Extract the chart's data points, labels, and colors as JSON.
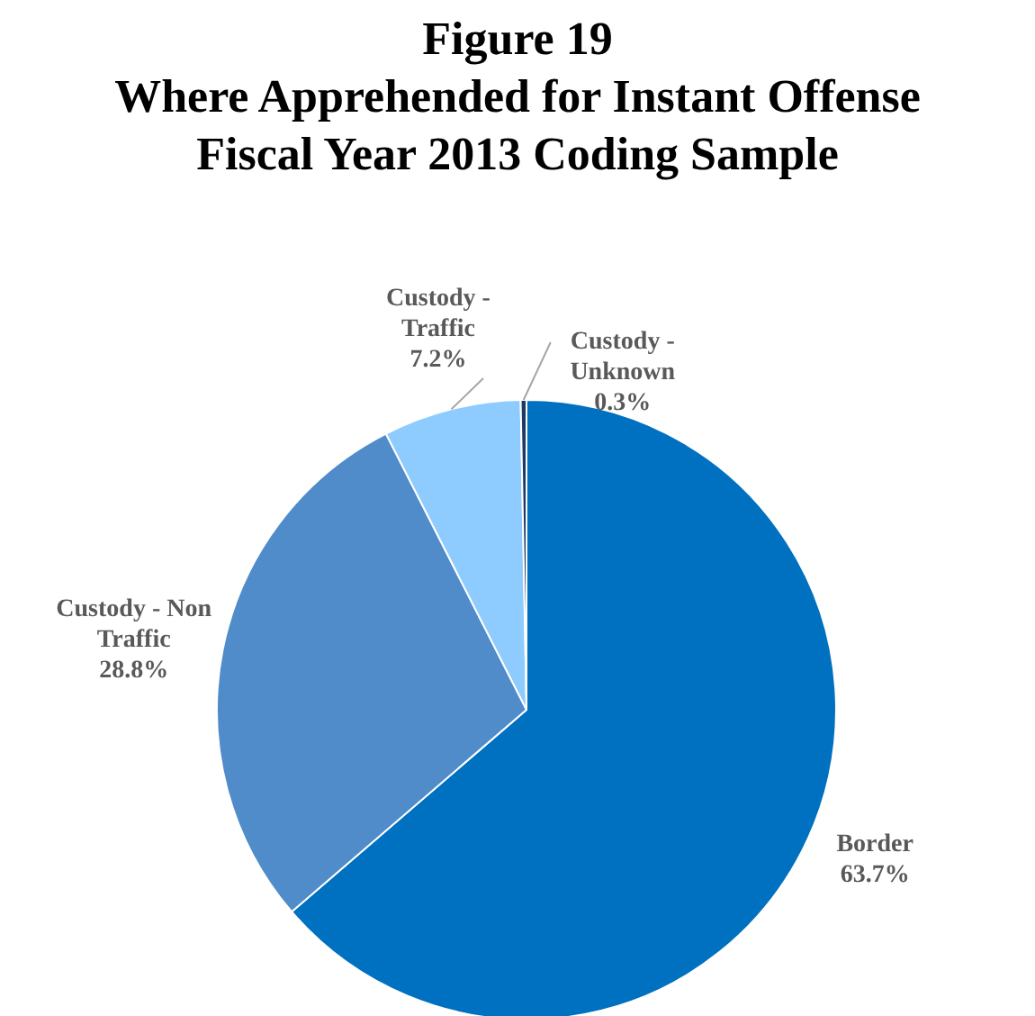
{
  "chart_data": {
    "type": "pie",
    "title": "Figure 19\nWhere Apprehended for Instant Offense\nFiscal Year 2013 Coding Sample",
    "categories": [
      "Border",
      "Custody - Non Traffic",
      "Custody - Traffic",
      "Custody - Unknown"
    ],
    "values": [
      63.7,
      28.8,
      7.2,
      0.3
    ],
    "colors": [
      "#0070c0",
      "#4f8cc9",
      "#8ecbff",
      "#1f3864"
    ],
    "value_labels": [
      "63.7%",
      "28.8%",
      "7.2%",
      "0.3%"
    ],
    "legend": false
  }
}
